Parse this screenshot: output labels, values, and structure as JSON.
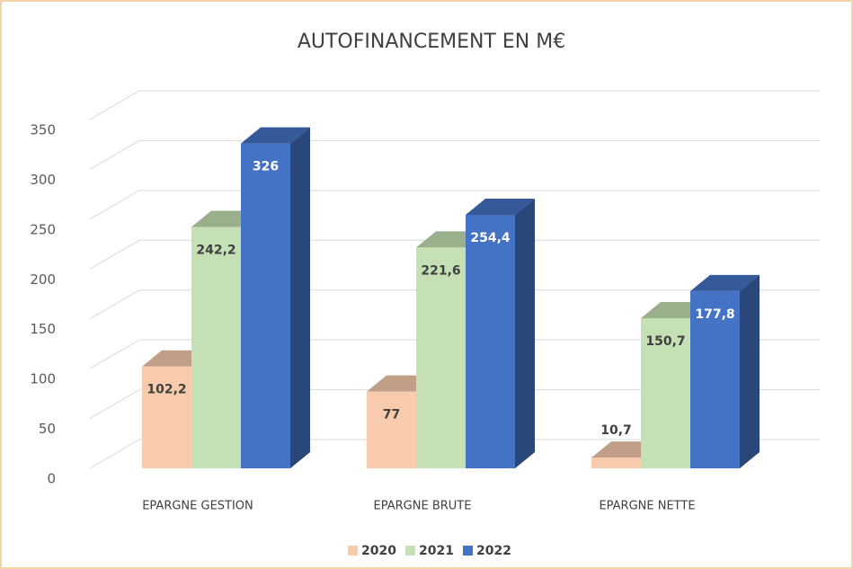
{
  "chart_data": {
    "type": "bar3d",
    "title": "AUTOFINANCEMENT EN M€",
    "categories": [
      "EPARGNE GESTION",
      "EPARGNE BRUTE",
      "EPARGNE NETTE"
    ],
    "series": [
      {
        "name": "2020",
        "color": "#f8cbad",
        "values": [
          102.2,
          77,
          10.7
        ],
        "value_labels": [
          "102,2",
          "77",
          "10,7"
        ]
      },
      {
        "name": "2021",
        "color": "#c5e0b4",
        "values": [
          242.2,
          221.6,
          150.7
        ],
        "value_labels": [
          "242,2",
          "221,6",
          "150,7"
        ]
      },
      {
        "name": "2022",
        "color": "#4472c4",
        "values": [
          326,
          254.4,
          177.8
        ],
        "value_labels": [
          "326",
          "254,4",
          "177,8"
        ]
      }
    ],
    "ylim": [
      0,
      350
    ],
    "yticks": [
      0,
      50,
      100,
      150,
      200,
      250,
      300,
      350
    ],
    "grid": true,
    "legend": "bottom"
  }
}
